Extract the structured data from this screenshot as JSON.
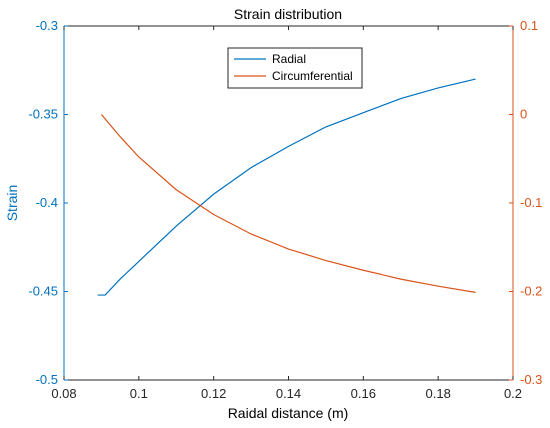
{
  "colors": {
    "left": "#0072BD",
    "right": "#D95319",
    "axis": "#262626"
  },
  "chart_data": {
    "type": "line",
    "title": "Strain distribution",
    "xlabel": "Raidal distance (m)",
    "ylabel_left": "Strain",
    "xlim": [
      0.08,
      0.2
    ],
    "ylim_left": [
      -0.5,
      -0.3
    ],
    "ylim_right": [
      -0.3,
      0.1
    ],
    "x_ticks": [
      "0.08",
      "0.1",
      "0.12",
      "0.14",
      "0.16",
      "0.18",
      "0.2"
    ],
    "y_ticks_left": [
      "-0.5",
      "-0.45",
      "-0.4",
      "-0.35",
      "-0.3"
    ],
    "y_ticks_right": [
      "-0.3",
      "-0.2",
      "-0.1",
      "0",
      "0.1"
    ],
    "legend_position": "top-center",
    "series": [
      {
        "name": "Radial",
        "axis": "left",
        "x": [
          0.089,
          0.091,
          0.095,
          0.1,
          0.11,
          0.12,
          0.13,
          0.14,
          0.15,
          0.16,
          0.17,
          0.18,
          0.19
        ],
        "y": [
          -0.452,
          -0.452,
          -0.443,
          -0.433,
          -0.413,
          -0.395,
          -0.38,
          -0.368,
          -0.357,
          -0.349,
          -0.341,
          -0.335,
          -0.33
        ]
      },
      {
        "name": "Circumferential",
        "axis": "right",
        "x": [
          0.09,
          0.095,
          0.1,
          0.11,
          0.12,
          0.13,
          0.14,
          0.15,
          0.16,
          0.17,
          0.18,
          0.19
        ],
        "y": [
          0.0,
          -0.025,
          -0.048,
          -0.085,
          -0.113,
          -0.135,
          -0.152,
          -0.165,
          -0.176,
          -0.186,
          -0.194,
          -0.201
        ]
      }
    ]
  }
}
